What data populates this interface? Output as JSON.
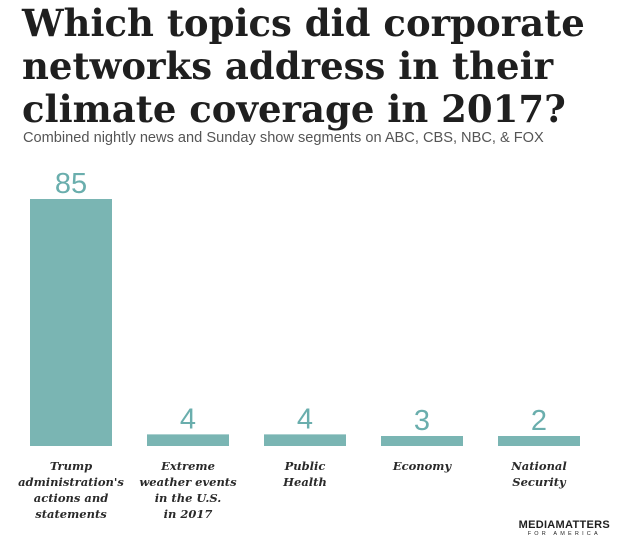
{
  "title": "Which topics did corporate networks address in their climate coverage in 2017?",
  "subtitle": "Combined nightly news and Sunday show segments on ABC, CBS, NBC, & FOX",
  "logo": {
    "main": "MEDIAMATTERS",
    "sub": "FOR AMERICA"
  },
  "colors": {
    "bar": "#7ab5b3",
    "value_label": "#6aaead",
    "title": "#1f1f1f"
  },
  "chart_data": {
    "type": "bar",
    "title": "Which topics did corporate networks address in their climate coverage in 2017?",
    "subtitle": "Combined nightly news and Sunday show segments on ABC, CBS, NBC, & FOX",
    "categories": [
      [
        "Trump",
        "administration's",
        "actions and",
        "statements"
      ],
      [
        "Extreme",
        "weather events",
        "in the U.S.",
        "in 2017"
      ],
      [
        "Public",
        "Health"
      ],
      [
        "Economy"
      ],
      [
        "National",
        "Security"
      ]
    ],
    "values": [
      85,
      4,
      4,
      3,
      2
    ],
    "xlabel": "",
    "ylabel": "",
    "ylim": [
      0,
      85
    ],
    "grid": false,
    "legend": "none",
    "data_labels": true
  }
}
